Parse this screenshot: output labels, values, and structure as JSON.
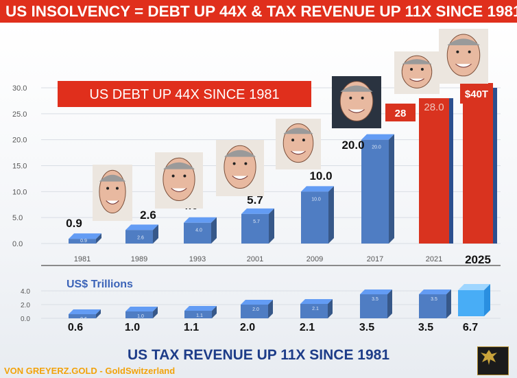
{
  "header": {
    "title": "US INSOLVENCY = DEBT UP 44X & TAX REVENUE UP 11X SINCE 1981"
  },
  "footer": {
    "source": "VON GREYERZ.GOLD - GoldSwitzerland",
    "subtitle": "US TAX REVENUE UP 11X SINCE 1981"
  },
  "colors": {
    "banner": "#e02f1c",
    "blue_bar": "#4f7dc3",
    "red_bar": "#d9331f",
    "navy_text": "#1d3c88",
    "gold_text": "#f2a20a"
  },
  "icons": [
    "portrait-1981",
    "portrait-1989",
    "portrait-1993",
    "portrait-2001",
    "portrait-2009",
    "portrait-2017",
    "portrait-2021",
    "portrait-2025",
    "eagle-logo-icon"
  ],
  "chart_data": [
    {
      "type": "bar",
      "title": "US DEBT UP 44X SINCE 1981",
      "xlabel": "",
      "ylabel": "",
      "ylim": [
        0,
        30
      ],
      "yticks": [
        "0.0",
        "5.0",
        "10.0",
        "15.0",
        "20.0",
        "25.0",
        "30.0"
      ],
      "categories": [
        "1981",
        "1989",
        "1993",
        "2001",
        "2009",
        "2017",
        "2021",
        "2025"
      ],
      "values": [
        0.9,
        2.6,
        4.0,
        5.7,
        10.0,
        20.0,
        28.0,
        40
      ],
      "bar_labels": [
        "0.9",
        "2.6",
        "4.0",
        "5.7",
        "10.0",
        "20.0",
        "28.0",
        "$40T"
      ],
      "big_labels": [
        "0.9",
        "2.6",
        "4.0",
        "5.7",
        "10.0",
        "20.0",
        "28",
        ""
      ],
      "bar_colors": [
        "#4f7dc3",
        "#4f7dc3",
        "#4f7dc3",
        "#4f7dc3",
        "#4f7dc3",
        "#4f7dc3",
        "#d9331f",
        "#d9331f"
      ],
      "grid": true,
      "legend": "none"
    },
    {
      "type": "bar",
      "title": "US TAX REVENUE UP 11X SINCE 1981",
      "annotation": "US$ Trillions",
      "xlabel": "",
      "ylabel": "",
      "ylim": [
        0,
        4
      ],
      "yticks": [
        "0.0",
        "2.0",
        "4.0"
      ],
      "categories": [
        "1981",
        "1989",
        "1993",
        "2001",
        "2009",
        "2017",
        "2021",
        "2025"
      ],
      "values": [
        0.6,
        1.0,
        1.1,
        2.0,
        2.1,
        3.5,
        3.5,
        6.7
      ],
      "bar_labels": [
        "0.6",
        "1.0",
        "1.1",
        "2.0",
        "2.1",
        "3.5",
        "3.5",
        "6.7"
      ],
      "big_labels": [
        "0.6",
        "1.0",
        "1.1",
        "2.0",
        "2.1",
        "3.5",
        "3.5",
        "6.7"
      ],
      "grid": true,
      "legend": "none"
    }
  ]
}
